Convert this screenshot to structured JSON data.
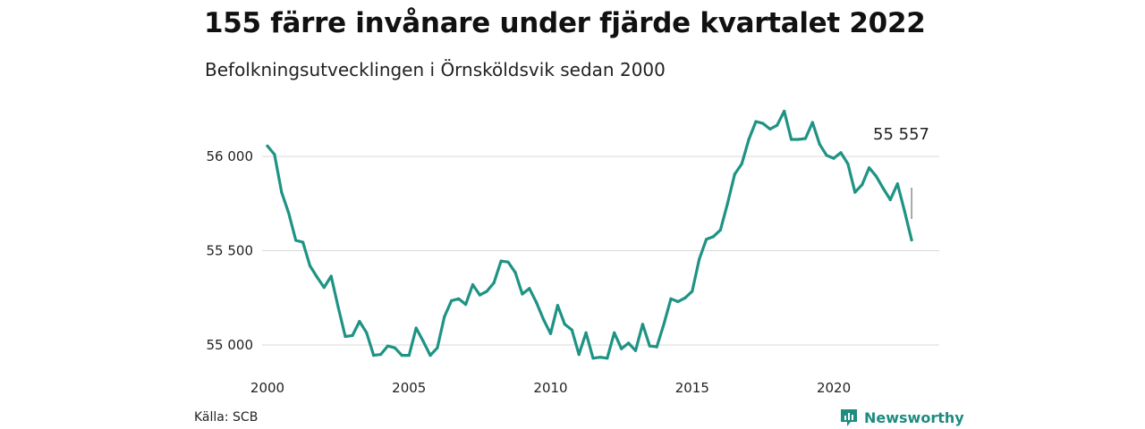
{
  "header": {
    "title": "155 färre invånare under fjärde kvartalet 2022",
    "subtitle": "Befolkningsutvecklingen i Örnsköldsvik sedan 2000"
  },
  "footer": {
    "source": "Källa: SCB",
    "brand": "Newsworthy"
  },
  "colors": {
    "line": "#1e9384",
    "grid": "#d9d9d9",
    "brand": "#1e8c80"
  },
  "chart_data": {
    "type": "line",
    "title": "155 färre invånare under fjärde kvartalet 2022",
    "subtitle": "Befolkningsutvecklingen i Örnsköldsvik sedan 2000",
    "xlabel": "",
    "ylabel": "",
    "x_ticks": [
      2000,
      2005,
      2010,
      2015,
      2020
    ],
    "x_tick_labels": [
      "2000",
      "2005",
      "2010",
      "2015",
      "2020"
    ],
    "y_ticks": [
      55000,
      55500,
      56000
    ],
    "y_tick_labels": [
      "55 000",
      "55 500",
      "56 000"
    ],
    "xlim": [
      2000,
      2023
    ],
    "ylim": [
      54950,
      56250
    ],
    "grid": true,
    "end_label": "55 557",
    "series": [
      {
        "x": [
          2000.0,
          2000.25,
          2000.5,
          2000.75,
          2001.0,
          2001.25,
          2001.5,
          2001.75,
          2002.0,
          2002.25,
          2002.5,
          2002.75,
          2003.0,
          2003.25,
          2003.5,
          2003.75,
          2004.0,
          2004.25,
          2004.5,
          2004.75,
          2005.0,
          2005.25,
          2005.5,
          2005.75,
          2006.0,
          2006.25,
          2006.5,
          2006.75,
          2007.0,
          2007.25,
          2007.5,
          2007.75,
          2008.0,
          2008.25,
          2008.5,
          2008.75,
          2009.0,
          2009.25,
          2009.5,
          2009.75,
          2010.0,
          2010.25,
          2010.5,
          2010.75,
          2011.0,
          2011.25,
          2011.5,
          2011.75,
          2012.0,
          2012.25,
          2012.5,
          2012.75,
          2013.0,
          2013.25,
          2013.5,
          2013.75,
          2014.0,
          2014.25,
          2014.5,
          2014.75,
          2015.0,
          2015.25,
          2015.5,
          2015.75,
          2016.0,
          2016.25,
          2016.5,
          2016.75,
          2017.0,
          2017.25,
          2017.5,
          2017.75,
          2018.0,
          2018.25,
          2018.5,
          2018.75,
          2019.0,
          2019.25,
          2019.5,
          2019.75,
          2020.0,
          2020.25,
          2020.5,
          2020.75,
          2021.0,
          2021.25,
          2021.5,
          2021.75,
          2022.0,
          2022.25,
          2022.5,
          2022.75
        ],
        "values": [
          56055,
          56010,
          55810,
          55700,
          55555,
          55545,
          55420,
          55360,
          55305,
          55365,
          55200,
          55045,
          55050,
          55125,
          55065,
          54945,
          54950,
          54995,
          54985,
          54945,
          54945,
          55090,
          55020,
          54945,
          54985,
          55150,
          55235,
          55245,
          55215,
          55320,
          55265,
          55285,
          55330,
          55445,
          55440,
          55385,
          55270,
          55300,
          55225,
          55135,
          55060,
          55210,
          55110,
          55080,
          54950,
          55065,
          54930,
          54935,
          54930,
          55065,
          54980,
          55010,
          54970,
          55110,
          54995,
          54990,
          55110,
          55245,
          55230,
          55250,
          55285,
          55455,
          55560,
          55575,
          55610,
          55750,
          55905,
          55960,
          56090,
          56185,
          56175,
          56145,
          56165,
          56240,
          56090,
          56090,
          56095,
          56180,
          56065,
          56005,
          55990,
          56020,
          55960,
          55810,
          55850,
          55940,
          55895,
          55830,
          55770,
          55855,
          55710,
          55557
        ]
      }
    ]
  }
}
